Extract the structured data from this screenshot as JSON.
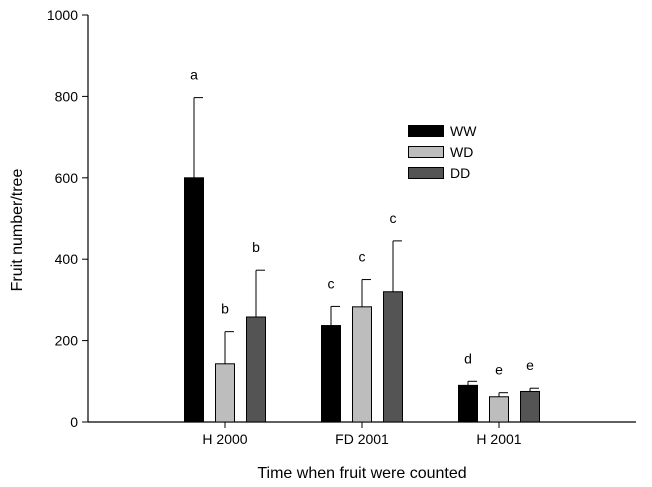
{
  "chart_data": {
    "type": "bar",
    "title": "",
    "xlabel": "Time when fruit were counted",
    "ylabel": "Fruit number/tree",
    "ylim": [
      0,
      1000
    ],
    "yticks": [
      0,
      200,
      400,
      600,
      800,
      1000
    ],
    "categories": [
      "H 2000",
      "FD 2001",
      "H 2001"
    ],
    "series": [
      {
        "name": "WW",
        "color": "#000000",
        "values": [
          600,
          237,
          90
        ],
        "errors": [
          197,
          47,
          10
        ],
        "labels": [
          "a",
          "c",
          "d"
        ]
      },
      {
        "name": "WD",
        "color": "#bdbdbd",
        "values": [
          143,
          283,
          62
        ],
        "errors": [
          79,
          67,
          10
        ],
        "labels": [
          "b",
          "c",
          "e"
        ]
      },
      {
        "name": "DD",
        "color": "#545454",
        "values": [
          258,
          320,
          75
        ],
        "errors": [
          115,
          125,
          8
        ],
        "labels": [
          "b",
          "c",
          "e"
        ]
      }
    ],
    "legend": "top-right",
    "grid": false
  }
}
